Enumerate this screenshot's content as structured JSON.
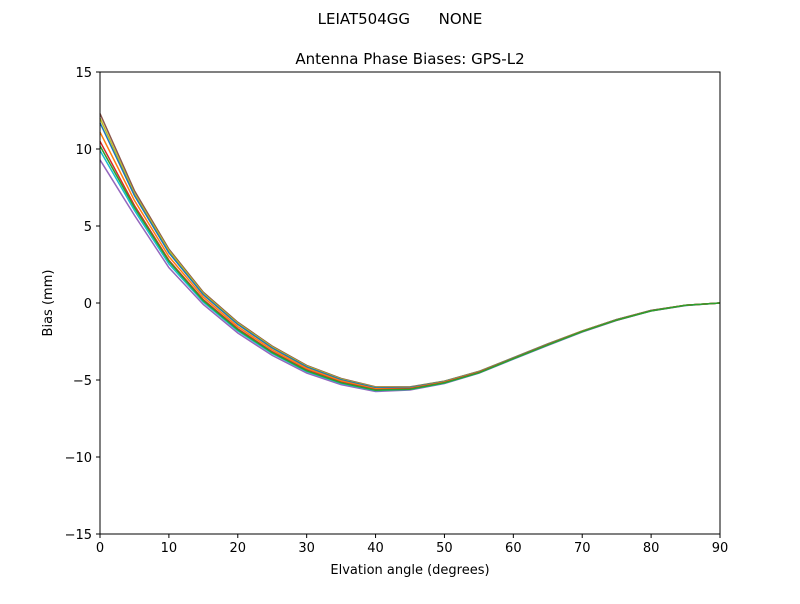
{
  "chart_data": {
    "type": "line",
    "suptitle": "LEIAT504GG      NONE",
    "title": "Antenna Phase Biases: GPS-L2",
    "xlabel": "Elvation angle (degrees)",
    "ylabel": "Bias (mm)",
    "xlim": [
      0,
      90
    ],
    "ylim": [
      -15,
      15
    ],
    "xticks": [
      0,
      10,
      20,
      30,
      40,
      50,
      60,
      70,
      80,
      90
    ],
    "yticks": [
      -15,
      -10,
      -5,
      0,
      5,
      10,
      15
    ],
    "ytick_labels": [
      "−15",
      "−10",
      "−5",
      "0",
      "5",
      "10",
      "15"
    ],
    "grid": false,
    "x": [
      0,
      5,
      10,
      15,
      20,
      25,
      30,
      35,
      40,
      45,
      50,
      55,
      60,
      65,
      70,
      75,
      80,
      85,
      90
    ],
    "series": [
      {
        "color": "#9467bd",
        "values": [
          9.3,
          5.7,
          2.3,
          -0.1,
          -1.95,
          -3.4,
          -4.55,
          -5.3,
          -5.75,
          -5.65,
          -5.23,
          -4.56,
          -3.65,
          -2.75,
          -1.89,
          -1.13,
          -0.52,
          -0.16,
          0
        ]
      },
      {
        "color": "#8c564b",
        "values": [
          12.3,
          7.3,
          3.5,
          0.7,
          -1.25,
          -2.8,
          -4.05,
          -4.9,
          -5.45,
          -5.45,
          -5.07,
          -4.44,
          -3.55,
          -2.65,
          -1.81,
          -1.07,
          -0.48,
          -0.14,
          0
        ]
      },
      {
        "color": "#bcbd22",
        "values": [
          12.0,
          7.1,
          3.4,
          0.62,
          -1.32,
          -2.86,
          -4.1,
          -4.94,
          -5.48,
          -5.47,
          -5.08,
          -4.45,
          -3.56,
          -2.66,
          -1.82,
          -1.08,
          -0.49,
          -0.14,
          0
        ]
      },
      {
        "color": "#17becf",
        "values": [
          9.9,
          6.02,
          2.54,
          0.06,
          -1.81,
          -3.28,
          -4.45,
          -5.22,
          -5.69,
          -5.61,
          -5.2,
          -4.54,
          -3.63,
          -2.73,
          -1.87,
          -1.12,
          -0.51,
          -0.16,
          0
        ]
      },
      {
        "color": "#1f77b4",
        "values": [
          11.7,
          6.98,
          3.26,
          0.54,
          -1.39,
          -2.92,
          -4.15,
          -4.98,
          -5.51,
          -5.49,
          -5.1,
          -4.46,
          -3.57,
          -2.67,
          -1.83,
          -1.08,
          -0.49,
          -0.14,
          0
        ]
      },
      {
        "color": "#ff7f0e",
        "values": [
          11.1,
          6.66,
          3.02,
          0.38,
          -1.53,
          -3.04,
          -4.25,
          -5.06,
          -5.57,
          -5.53,
          -5.13,
          -4.49,
          -3.59,
          -2.69,
          -1.84,
          -1.09,
          -0.5,
          -0.15,
          0
        ]
      },
      {
        "color": "#d62728",
        "values": [
          10.5,
          6.34,
          2.78,
          0.22,
          -1.67,
          -3.16,
          -4.35,
          -5.14,
          -5.63,
          -5.57,
          -5.17,
          -4.51,
          -3.61,
          -2.71,
          -1.86,
          -1.11,
          -0.5,
          -0.15,
          0
        ]
      },
      {
        "color": "#2ca02c",
        "values": [
          10.2,
          6.2,
          2.7,
          0.15,
          -1.74,
          -3.22,
          -4.4,
          -5.18,
          -5.66,
          -5.6,
          -5.19,
          -4.53,
          -3.62,
          -2.72,
          -1.86,
          -1.11,
          -0.51,
          -0.15,
          0
        ]
      }
    ]
  }
}
